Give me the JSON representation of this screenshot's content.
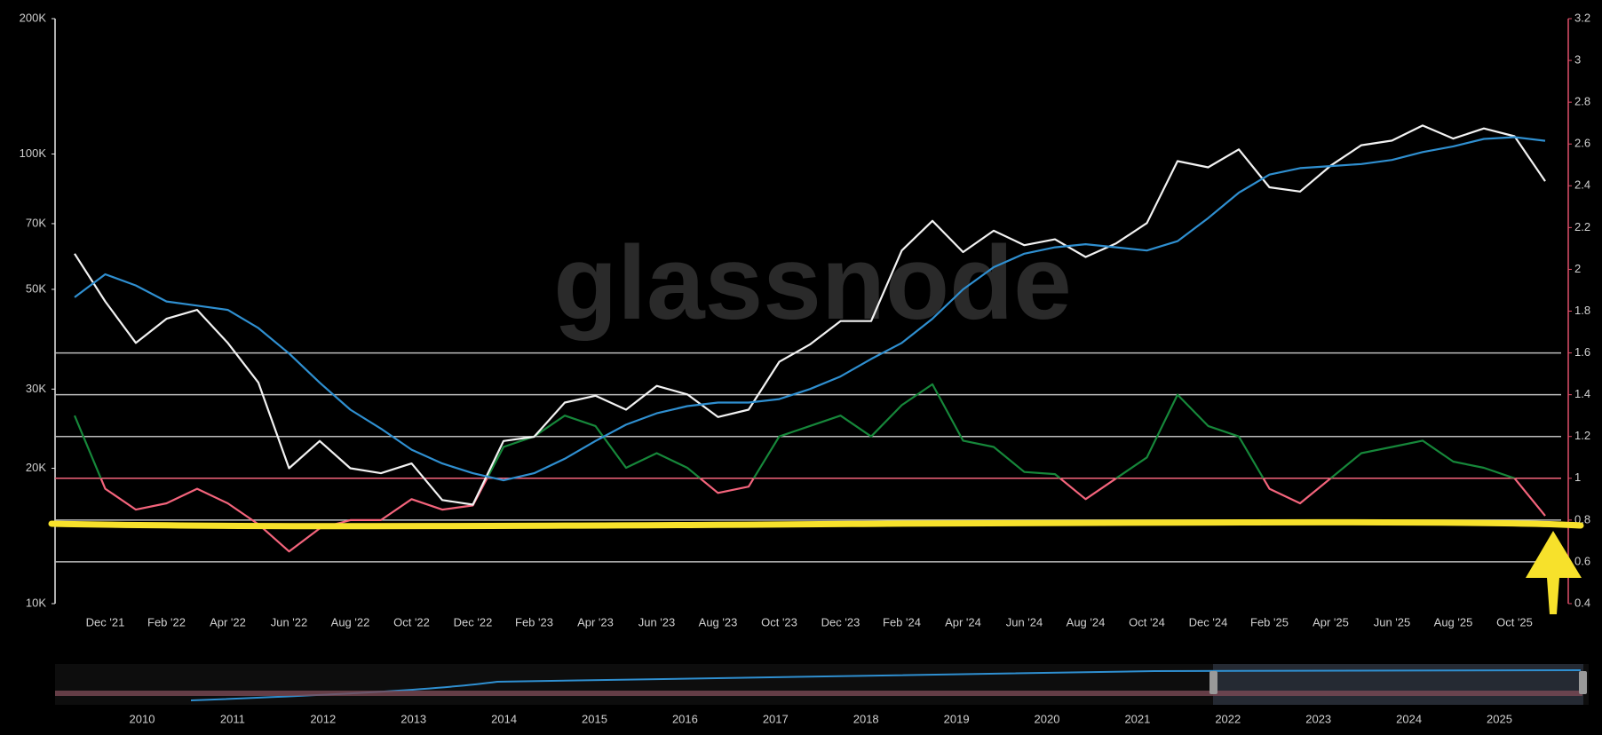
{
  "chart_data": {
    "type": "line",
    "watermark": "glassnode",
    "categories": [
      null,
      "Dec '21",
      null,
      "Feb '22",
      null,
      "Apr '22",
      null,
      "Jun '22",
      null,
      "Aug '22",
      null,
      "Oct '22",
      null,
      "Dec '22",
      null,
      "Feb '23",
      null,
      "Apr '23",
      null,
      "Jun '23",
      null,
      "Aug '23",
      null,
      "Oct '23",
      null,
      "Dec '23",
      null,
      "Feb '24",
      null,
      "Apr '24",
      null,
      "Jun '24",
      null,
      "Aug '24",
      null,
      "Oct '24",
      null,
      "Dec '24",
      null,
      "Feb '25",
      null,
      "Apr '25",
      null,
      "Jun '25",
      null,
      "Aug '25",
      null,
      "Oct '25",
      null
    ],
    "yscale": "log",
    "ylim": [
      10000,
      200000
    ],
    "yticks": [
      {
        "value": 10000,
        "label": "10K"
      },
      {
        "value": 20000,
        "label": "20K"
      },
      {
        "value": 30000,
        "label": "30K"
      },
      {
        "value": 50000,
        "label": "50K"
      },
      {
        "value": 70000,
        "label": "70K"
      },
      {
        "value": 100000,
        "label": "100K"
      },
      {
        "value": 200000,
        "label": "200K"
      }
    ],
    "y2lim": [
      0.4,
      3.2
    ],
    "y2ticks": [
      0.4,
      0.6,
      0.8,
      1,
      1.2,
      1.4,
      1.6,
      1.8,
      2,
      2.2,
      2.4,
      2.6,
      2.8,
      3,
      3.2
    ],
    "reference_lines": [
      0.6,
      0.8,
      1.2,
      1.4,
      1.6
    ],
    "threshold": 1,
    "series": [
      {
        "color": "#f2f2f2",
        "values": [
          60000,
          47000,
          38000,
          43000,
          45000,
          38000,
          31000,
          20000,
          23000,
          20000,
          19500,
          20500,
          17000,
          16600,
          23000,
          23500,
          28000,
          29000,
          27000,
          30500,
          29200,
          26000,
          27000,
          34500,
          37700,
          42500,
          42500,
          61000,
          71000,
          60500,
          67500,
          62700,
          64600,
          59000,
          63300,
          70200,
          96400,
          93400,
          102400,
          84300,
          82500,
          94200,
          104600,
          107100,
          115700,
          108200,
          114000,
          109500,
          87000
        ]
      },
      {
        "color": "#2f8fd0",
        "values": [
          48000,
          54000,
          51000,
          47000,
          46000,
          45000,
          41000,
          36000,
          31000,
          27000,
          24500,
          22000,
          20500,
          19500,
          18800,
          19500,
          21000,
          23000,
          25000,
          26500,
          27500,
          28000,
          28000,
          28500,
          30000,
          32000,
          35000,
          38000,
          43000,
          50000,
          56000,
          60000,
          62000,
          63000,
          62000,
          61000,
          64000,
          72000,
          82000,
          90000,
          93000,
          94000,
          95000,
          97000,
          101000,
          104000,
          108000,
          109000,
          107000
        ]
      },
      {
        "axis": "y2",
        "color": "#16873a",
        "color_below": "#f4647c",
        "values": [
          1.3,
          0.95,
          0.85,
          0.88,
          0.95,
          0.88,
          0.78,
          0.65,
          0.76,
          0.8,
          0.8,
          0.9,
          0.85,
          0.87,
          1.15,
          1.2,
          1.3,
          1.25,
          1.05,
          1.12,
          1.05,
          0.93,
          0.96,
          1.2,
          1.25,
          1.3,
          1.2,
          1.35,
          1.45,
          1.18,
          1.15,
          1.03,
          1.02,
          0.9,
          1,
          1.1,
          1.4,
          1.25,
          1.2,
          0.95,
          0.88,
          1,
          1.12,
          1.15,
          1.18,
          1.08,
          1.05,
          1,
          0.82
        ]
      }
    ],
    "navigator": {
      "years": [
        2010,
        2011,
        2012,
        2013,
        2014,
        2015,
        2016,
        2017,
        2018,
        2019,
        2020,
        2021,
        2022,
        2023,
        2024,
        2025
      ]
    }
  }
}
